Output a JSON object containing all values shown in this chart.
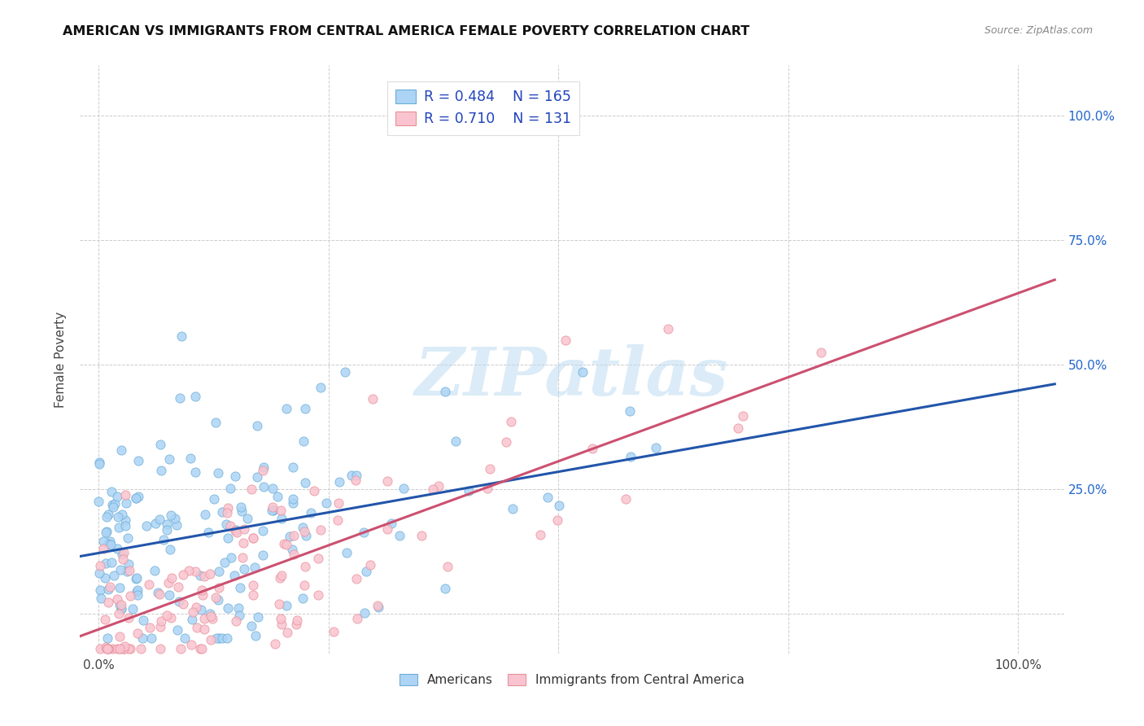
{
  "title": "AMERICAN VS IMMIGRANTS FROM CENTRAL AMERICA FEMALE POVERTY CORRELATION CHART",
  "source": "Source: ZipAtlas.com",
  "ylabel": "Female Poverty",
  "xlim": [
    -0.02,
    1.05
  ],
  "ylim": [
    -0.08,
    1.1
  ],
  "legend_blue_R": "0.484",
  "legend_blue_N": "165",
  "legend_pink_R": "0.710",
  "legend_pink_N": "131",
  "blue_fill_color": "#ADD4F5",
  "pink_fill_color": "#F9C4CF",
  "blue_edge_color": "#6BAED6",
  "pink_edge_color": "#E8909A",
  "blue_line_color": "#2255AA",
  "pink_line_color": "#CC5070",
  "legend_text_color": "#2244BB",
  "right_tick_color": "#2266CC",
  "legend_label_blue": "Americans",
  "legend_label_pink": "Immigrants from Central America",
  "watermark_text": "ZIPatlas",
  "watermark_color": "#B8D8F0",
  "background_color": "#FFFFFF",
  "grid_color": "#CCCCCC",
  "seed": 7
}
